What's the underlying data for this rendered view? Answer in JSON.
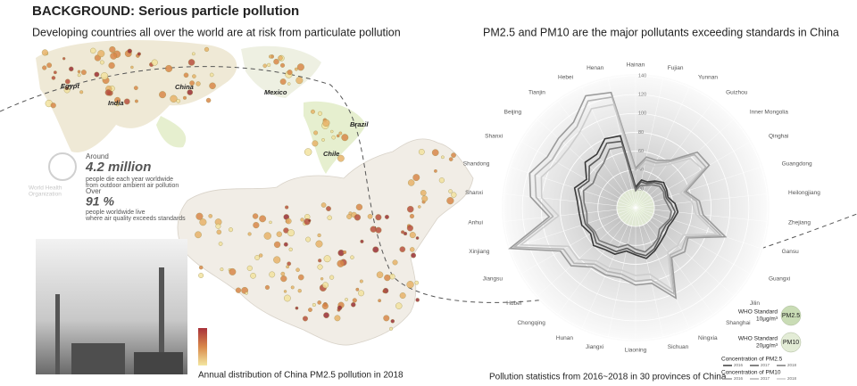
{
  "header": {
    "title": "BACKGROUND: Serious particle pollution",
    "subtitle": "Developing countries all over the world are at risk from particulate pollution"
  },
  "world_map": {
    "labels": [
      "Egypt",
      "India",
      "China",
      "Mexico",
      "Brazil",
      "Chile"
    ]
  },
  "who": {
    "organization": [
      "World Health",
      "Organization"
    ],
    "around": "Around",
    "deaths": "4.2 million",
    "deaths_text": [
      "people die each year worldwide",
      "from outdoor ambient air pollution"
    ],
    "over": "Over",
    "share": "91 %",
    "share_text": [
      "people worldwide live",
      "where air quality exceeds standards"
    ]
  },
  "china_map": {
    "caption": "Annual distribution of China PM2.5 pollution in 2018"
  },
  "chart_data": {
    "type": "radar",
    "title": "PM2.5 and PM10 are the major pollutants exceeding standards in China",
    "caption": "Pollution statistics from 2016~2018 in 30 provinces of China",
    "categories": [
      "Hainan",
      "Fujian",
      "Yunnan",
      "Guizhou",
      "Inner Mongolia",
      "Qinghai",
      "Guangdong",
      "Heilongjiang",
      "Zhejiang",
      "Gansu",
      "Guangxi",
      "Jilin",
      "Shanghai",
      "Ningxia",
      "Sichuan",
      "Liaoning",
      "Jiangxi",
      "Hunan",
      "Chongqing",
      "Hubei",
      "Jiangsu",
      "Xinjiang",
      "Anhui",
      "Shanxi",
      "Shandong",
      "Shanxi",
      "Beijing",
      "Tianjin",
      "Hebei",
      "Henan"
    ],
    "rlim": [
      0,
      140
    ],
    "rticks": [
      20,
      40,
      60,
      80,
      100,
      120,
      140
    ],
    "references": [
      {
        "name": "PM2.5",
        "text": "WHO Standard",
        "level": {
          "value": 10,
          "label": "10µg/m³"
        },
        "color": "#c9dcb5"
      },
      {
        "name": "PM10",
        "text": "WHO Standard",
        "level": {
          "value": 20,
          "label": "20µg/m³"
        },
        "color": "#e3ecd6"
      }
    ],
    "groups": [
      {
        "name": "Concentration of PM2.5",
        "series": [
          {
            "name": "2016",
            "color": "#3a3a3a",
            "values": [
              22,
              30,
              30,
              35,
              40,
              38,
              36,
              42,
              45,
              42,
              40,
              42,
              45,
              50,
              55,
              50,
              47,
              54,
              55,
              60,
              55,
              60,
              60,
              62,
              68,
              60,
              72,
              70,
              80,
              78
            ]
          },
          {
            "name": "2017",
            "color": "#5a5a5a",
            "values": [
              20,
              28,
              28,
              33,
              37,
              36,
              34,
              38,
              42,
              40,
              37,
              38,
              42,
              48,
              52,
              48,
              44,
              51,
              52,
              56,
              52,
              56,
              56,
              58,
              64,
              57,
              66,
              65,
              75,
              72
            ]
          },
          {
            "name": "2018",
            "color": "#7a7a7a",
            "values": [
              18,
              24,
              26,
              30,
              34,
              34,
              32,
              34,
              38,
              38,
              35,
              34,
              40,
              44,
              48,
              44,
              40,
              46,
              48,
              52,
              50,
              54,
              52,
              55,
              58,
              52,
              55,
              58,
              68,
              66
            ]
          }
        ]
      },
      {
        "name": "Concentration of PM10",
        "series": [
          {
            "name": "2016",
            "color": "#9a9a9a",
            "values": [
              42,
              55,
              55,
              62,
              88,
              90,
              56,
              68,
              72,
              100,
              64,
              70,
              65,
              105,
              82,
              82,
              76,
              78,
              78,
              92,
              92,
              140,
              92,
              112,
              118,
              108,
              110,
              112,
              130,
              125
            ]
          },
          {
            "name": "2017",
            "color": "#b4b4b4",
            "values": [
              40,
              52,
              52,
              60,
              84,
              86,
              54,
              65,
              68,
              95,
              62,
              66,
              62,
              100,
              78,
              78,
              72,
              74,
              74,
              88,
              88,
              135,
              88,
              106,
              112,
              102,
              104,
              106,
              124,
              120
            ]
          },
          {
            "name": "2018",
            "color": "#cdcdcd",
            "values": [
              36,
              48,
              48,
              56,
              78,
              82,
              50,
              60,
              64,
              90,
              58,
              60,
              58,
              95,
              72,
              72,
              68,
              70,
              70,
              82,
              82,
              128,
              82,
              100,
              105,
              96,
              95,
              100,
              115,
              112
            ]
          }
        ]
      }
    ]
  }
}
